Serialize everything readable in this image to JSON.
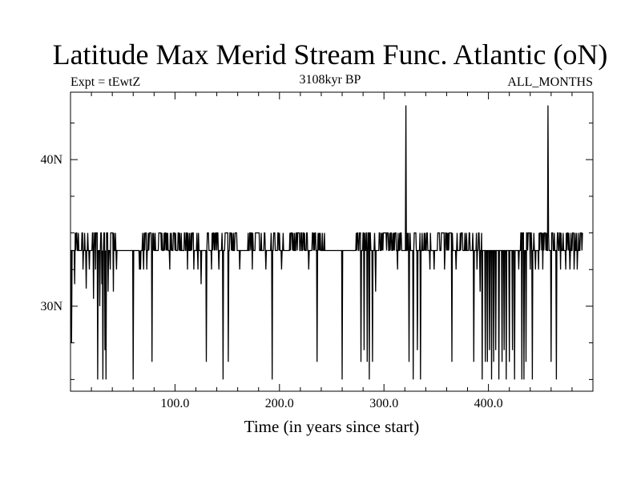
{
  "chart_data": {
    "type": "line",
    "title": "Latitude Max Merid Stream Func. Atlantic (oN)",
    "subtitle_left": "Expt = tEwtZ",
    "subtitle_center": "3108kyr BP",
    "subtitle_right": "ALL_MONTHS",
    "xlabel": "Time (in years since start)",
    "ylabel": "",
    "xlim": [
      0,
      500
    ],
    "ylim": [
      24.2,
      44.6
    ],
    "x_ticks": [
      100,
      200,
      300,
      400
    ],
    "x_tick_labels": [
      "100.0",
      "200.0",
      "300.0",
      "400.0"
    ],
    "y_ticks": [
      30,
      40
    ],
    "y_tick_labels": [
      "30N",
      "40N"
    ],
    "baseline": 33.8,
    "upper_band": [
      33.8,
      35.0
    ],
    "dips": [
      [
        1,
        27.5
      ],
      [
        4,
        31.5
      ],
      [
        12,
        32.5
      ],
      [
        15,
        31.2
      ],
      [
        18,
        32.5
      ],
      [
        22,
        30.5
      ],
      [
        24,
        32.5
      ],
      [
        26,
        25.0
      ],
      [
        28,
        30.0
      ],
      [
        30,
        31.5
      ],
      [
        31,
        25.0
      ],
      [
        33,
        27.0
      ],
      [
        34,
        25.0
      ],
      [
        36,
        31.0
      ],
      [
        38,
        32.5
      ],
      [
        41,
        31.0
      ],
      [
        44,
        32.5
      ],
      [
        60,
        25.0
      ],
      [
        66,
        32.5
      ],
      [
        67,
        32.5
      ],
      [
        70,
        32.5
      ],
      [
        73,
        32.5
      ],
      [
        78,
        26.2
      ],
      [
        95,
        32.5
      ],
      [
        112,
        32.5
      ],
      [
        118,
        32.5
      ],
      [
        122,
        32.5
      ],
      [
        125,
        31.5
      ],
      [
        130,
        26.2
      ],
      [
        135,
        32.5
      ],
      [
        142,
        32.5
      ],
      [
        146,
        25.0
      ],
      [
        151,
        26.2
      ],
      [
        162,
        32.5
      ],
      [
        174,
        32.5
      ],
      [
        187,
        32.5
      ],
      [
        193,
        25.0
      ],
      [
        202,
        32.5
      ],
      [
        228,
        32.5
      ],
      [
        236,
        26.2
      ],
      [
        260,
        25.0
      ],
      [
        278,
        26.2
      ],
      [
        281,
        27.0
      ],
      [
        284,
        26.2
      ],
      [
        286,
        25.0
      ],
      [
        289,
        26.2
      ],
      [
        292,
        31.0
      ],
      [
        313,
        32.5
      ],
      [
        324,
        26.2
      ],
      [
        328,
        25.0
      ],
      [
        332,
        27.0
      ],
      [
        335,
        25.0
      ],
      [
        344,
        32.5
      ],
      [
        348,
        32.5
      ],
      [
        358,
        32.5
      ],
      [
        365,
        26.2
      ],
      [
        369,
        32.5
      ],
      [
        386,
        26.2
      ],
      [
        389,
        32.5
      ],
      [
        392,
        31.0
      ],
      [
        394,
        25.0
      ],
      [
        397,
        26.2
      ],
      [
        399,
        26.2
      ],
      [
        401,
        27.0
      ],
      [
        403,
        25.0
      ],
      [
        405,
        26.2
      ],
      [
        407,
        27.0
      ],
      [
        410,
        25.0
      ],
      [
        413,
        26.2
      ],
      [
        415,
        27.0
      ],
      [
        417,
        25.0
      ],
      [
        420,
        26.2
      ],
      [
        423,
        27.0
      ],
      [
        425,
        25.0
      ],
      [
        429,
        32.5
      ],
      [
        432,
        25.0
      ],
      [
        434,
        25.0
      ],
      [
        436,
        26.2
      ],
      [
        440,
        32.5
      ],
      [
        442,
        25.0
      ],
      [
        445,
        32.5
      ],
      [
        448,
        32.5
      ],
      [
        452,
        32.5
      ],
      [
        460,
        26.2
      ],
      [
        465,
        25.0
      ],
      [
        469,
        32.5
      ],
      [
        474,
        32.5
      ],
      [
        478,
        32.5
      ],
      [
        482,
        32.5
      ],
      [
        485,
        32.5
      ]
    ],
    "spikes": [
      [
        321,
        43.7
      ],
      [
        457,
        43.7
      ]
    ]
  }
}
